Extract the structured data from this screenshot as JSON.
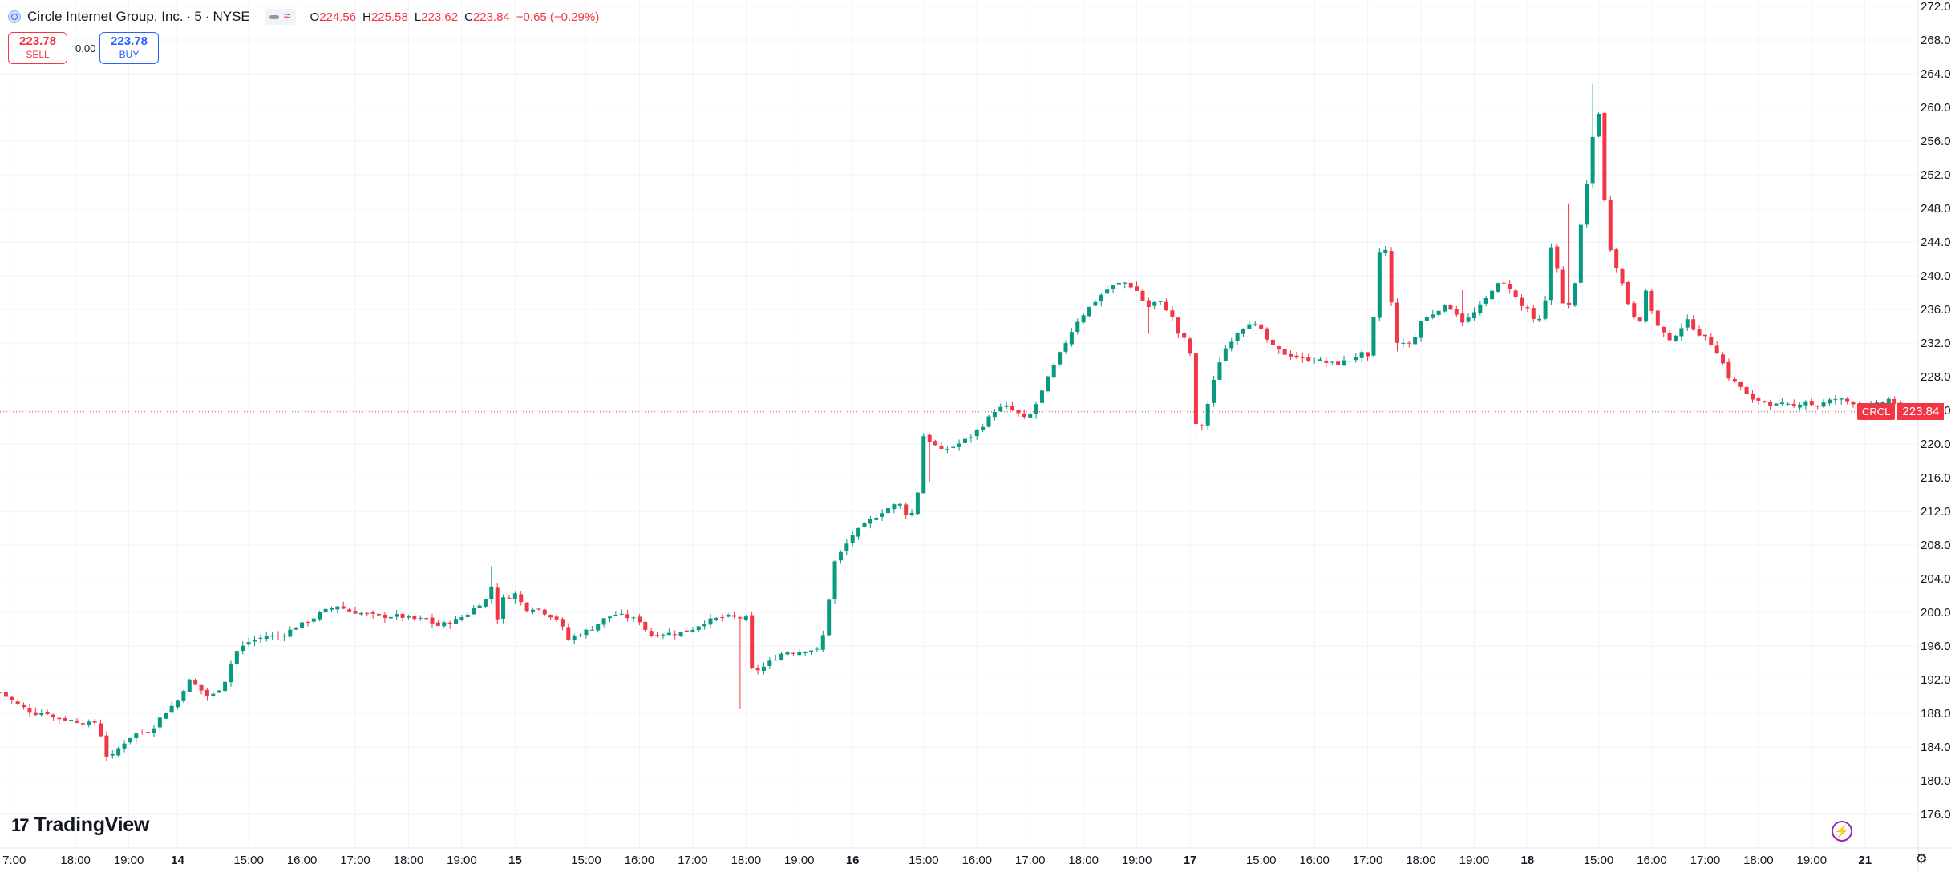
{
  "header": {
    "symbol_title": "Circle Internet Group, Inc.",
    "interval": "5",
    "exchange": "NYSE",
    "ohlc": {
      "o": "224.56",
      "h": "225.58",
      "l": "223.62",
      "c": "223.84",
      "change": "−0.65 (−0.29%)"
    }
  },
  "trade": {
    "sell_price": "223.78",
    "sell_label": "SELL",
    "spread": "0.00",
    "buy_price": "223.78",
    "buy_label": "BUY"
  },
  "branding": {
    "logo_text": "TradingView",
    "logo_mark": "17"
  },
  "last_price": {
    "symbol": "CRCL",
    "value": "223.84"
  },
  "colors": {
    "up": "#089981",
    "down": "#f23645",
    "grid": "#f0f3fa",
    "accent": "#2962ff"
  },
  "icons": [
    "symbol-logo-icon",
    "collapse-icon",
    "indicator-wave-icon",
    "lightning-icon",
    "settings-gear-icon"
  ],
  "chart_data": {
    "type": "candlestick",
    "title": "Circle Internet Group, Inc. · 5 · NYSE",
    "ylim": [
      174,
      272
    ],
    "y_ticks": [
      "176.00",
      "180.00",
      "184.00",
      "188.00",
      "192.00",
      "196.00",
      "200.00",
      "204.00",
      "208.00",
      "212.00",
      "216.00",
      "220.00",
      "224.00",
      "228.00",
      "232.00",
      "236.00",
      "240.00",
      "244.00",
      "248.00",
      "252.00",
      "256.00",
      "260.00",
      "264.00",
      "268.00",
      "272.00"
    ],
    "x_ticks": [
      "7:00",
      "18:00",
      "19:00",
      "14",
      "15:00",
      "16:00",
      "17:00",
      "18:00",
      "19:00",
      "15",
      "15:00",
      "16:00",
      "17:00",
      "18:00",
      "19:00",
      "16",
      "15:00",
      "16:00",
      "17:00",
      "18:00",
      "19:00",
      "17",
      "15:00",
      "16:00",
      "17:00",
      "18:00",
      "19:00",
      "18",
      "15:00",
      "16:00",
      "17:00",
      "18:00",
      "19:00",
      "21"
    ],
    "x_tick_pos": [
      0.8,
      4.25,
      7.25,
      10,
      14,
      17,
      20,
      23,
      26,
      29,
      33,
      36,
      39,
      42,
      45,
      48,
      52,
      55,
      58,
      61,
      64,
      67,
      71,
      74,
      77,
      80,
      83,
      86,
      90,
      93,
      96,
      99,
      102,
      105
    ],
    "n_slots": 107,
    "path": [
      [
        0,
        190.5
      ],
      [
        1,
        189
      ],
      [
        2,
        188
      ],
      [
        2.6,
        188.2
      ],
      [
        3,
        187.5
      ],
      [
        4,
        187.2
      ],
      [
        5,
        186.8
      ],
      [
        5.5,
        187
      ],
      [
        5.9,
        183.2
      ],
      [
        6.2,
        182.6
      ],
      [
        6.8,
        184.2
      ],
      [
        7.5,
        185.5
      ],
      [
        8.5,
        186
      ],
      [
        9.2,
        188
      ],
      [
        10,
        189.5
      ],
      [
        10.6,
        192
      ],
      [
        11.2,
        191
      ],
      [
        11.8,
        189.8
      ],
      [
        12.6,
        191.5
      ],
      [
        13.2,
        195.2
      ],
      [
        14,
        196.5
      ],
      [
        15,
        197.2
      ],
      [
        15.8,
        197.2
      ],
      [
        16.6,
        198.2
      ],
      [
        17.4,
        199
      ],
      [
        18.1,
        200
      ],
      [
        19,
        200.8
      ],
      [
        19.6,
        200.2
      ],
      [
        20.6,
        199.8
      ],
      [
        21.4,
        199.5
      ],
      [
        22.4,
        199.6
      ],
      [
        23.2,
        199.2
      ],
      [
        24,
        199.2
      ],
      [
        24.6,
        198.4
      ],
      [
        25.6,
        199
      ],
      [
        26.3,
        199.8
      ],
      [
        26.8,
        200.8
      ],
      [
        27.4,
        201.6
      ],
      [
        27.6,
        204.4
      ],
      [
        27.9,
        198.6
      ],
      [
        28.3,
        201.6
      ],
      [
        29,
        202.2
      ],
      [
        29.6,
        200.4
      ],
      [
        30.2,
        200.6
      ],
      [
        30.8,
        199.8
      ],
      [
        31.4,
        199.2
      ],
      [
        32,
        196.8
      ],
      [
        32.6,
        197.4
      ],
      [
        33.4,
        198.2
      ],
      [
        34,
        199.2
      ],
      [
        34.6,
        199.8
      ],
      [
        35.4,
        199.4
      ],
      [
        36,
        199
      ],
      [
        36.6,
        197.2
      ],
      [
        37.2,
        197.5
      ],
      [
        38,
        197.5
      ],
      [
        38.8,
        197.8
      ],
      [
        39.6,
        198.8
      ],
      [
        40.2,
        199.2
      ],
      [
        41,
        199.5
      ],
      [
        41.8,
        199.3
      ],
      [
        42.1,
        199.3
      ],
      [
        42.3,
        193.2
      ],
      [
        42.8,
        193.2
      ],
      [
        43.4,
        194.2
      ],
      [
        44.2,
        195.4
      ],
      [
        44.8,
        195.2
      ],
      [
        45.4,
        195.6
      ],
      [
        46,
        195.5
      ],
      [
        46.3,
        196.8
      ],
      [
        47,
        206
      ],
      [
        48,
        209.2
      ],
      [
        48.8,
        210.6
      ],
      [
        49.8,
        212.2
      ],
      [
        50.6,
        213
      ],
      [
        51.2,
        211.2
      ],
      [
        51.6,
        213
      ],
      [
        52,
        221
      ],
      [
        53,
        219.2
      ],
      [
        53.8,
        219.8
      ],
      [
        54.6,
        220.8
      ],
      [
        55.4,
        222.4
      ],
      [
        56,
        224
      ],
      [
        56.6,
        224.5
      ],
      [
        57.2,
        223.8
      ],
      [
        57.8,
        222.8
      ],
      [
        58.4,
        225
      ],
      [
        59,
        227.8
      ],
      [
        59.8,
        231.3
      ],
      [
        60.6,
        234.5
      ],
      [
        61.4,
        236.4
      ],
      [
        62.2,
        238.2
      ],
      [
        62.8,
        239
      ],
      [
        63.4,
        239.2
      ],
      [
        64,
        238.2
      ],
      [
        64.6,
        236.2
      ],
      [
        65.2,
        237.1
      ],
      [
        65.7,
        236
      ],
      [
        66.2,
        234.4
      ],
      [
        66.5,
        231.6
      ],
      [
        66.9,
        233.6
      ],
      [
        67.3,
        222.2
      ],
      [
        67.7,
        222.2
      ],
      [
        68.2,
        226.5
      ],
      [
        68.8,
        230.8
      ],
      [
        69.6,
        233.2
      ],
      [
        70.4,
        234.6
      ],
      [
        71,
        233.4
      ],
      [
        71.6,
        231.6
      ],
      [
        72.2,
        230.8
      ],
      [
        72.8,
        230.5
      ],
      [
        73.4,
        230
      ],
      [
        74,
        230.1
      ],
      [
        74.6,
        229.7
      ],
      [
        75.2,
        229.5
      ],
      [
        76,
        230
      ],
      [
        76.6,
        230.8
      ],
      [
        77,
        230.2
      ],
      [
        77.4,
        235.8
      ],
      [
        77.7,
        243.6
      ],
      [
        78.1,
        242.8
      ],
      [
        78.5,
        232.4
      ],
      [
        79.1,
        231.7
      ],
      [
        79.6,
        232.4
      ],
      [
        80,
        234.6
      ],
      [
        80.6,
        235.4
      ],
      [
        81.2,
        236.4
      ],
      [
        81.8,
        236.1
      ],
      [
        82.4,
        234.4
      ],
      [
        83,
        235.6
      ],
      [
        83.6,
        237
      ],
      [
        84.1,
        238.8
      ],
      [
        84.6,
        239.1
      ],
      [
        85,
        238.6
      ],
      [
        85.6,
        236.4
      ],
      [
        86.1,
        236.1
      ],
      [
        86.5,
        233.6
      ],
      [
        86.9,
        236.3
      ],
      [
        87.2,
        238.2
      ],
      [
        87.4,
        246
      ],
      [
        87.7,
        240.4
      ],
      [
        88,
        236.6
      ],
      [
        88.3,
        236.1
      ],
      [
        88.7,
        239.6
      ],
      [
        89,
        245.8
      ],
      [
        89.4,
        251.8
      ],
      [
        89.8,
        258.8
      ],
      [
        90,
        259.4
      ],
      [
        90.4,
        246.8
      ],
      [
        90.7,
        242.8
      ],
      [
        91.2,
        240
      ],
      [
        91.7,
        236.5
      ],
      [
        92,
        235.3
      ],
      [
        92.4,
        234.7
      ],
      [
        92.7,
        238.4
      ],
      [
        93.2,
        234.3
      ],
      [
        93.6,
        233.4
      ],
      [
        94,
        232.1
      ],
      [
        94.5,
        233.6
      ],
      [
        95,
        234.6
      ],
      [
        95.6,
        233.2
      ],
      [
        96.2,
        232.3
      ],
      [
        96.8,
        230.6
      ],
      [
        97.3,
        228
      ],
      [
        98,
        226.8
      ],
      [
        98.6,
        225.1
      ],
      [
        99.2,
        225.3
      ],
      [
        99.8,
        224.6
      ],
      [
        100.4,
        224.7
      ],
      [
        101,
        224.4
      ],
      [
        101.6,
        225.3
      ],
      [
        102.2,
        224.4
      ],
      [
        102.8,
        225
      ],
      [
        103.4,
        225.4
      ],
      [
        104,
        225.1
      ],
      [
        104.6,
        224.8
      ],
      [
        105.2,
        224.4
      ],
      [
        105.8,
        224.8
      ],
      [
        106.4,
        225.4
      ],
      [
        106.8,
        224.6
      ],
      [
        107.3,
        223.84
      ]
    ],
    "spikes": [
      {
        "at": 41.8,
        "low": 188.5
      },
      {
        "at": 46.3,
        "low": 201.5
      },
      {
        "at": 66.5,
        "high": 234.5
      },
      {
        "at": 67.3,
        "low": 220.2
      },
      {
        "at": 88.3,
        "high": 248.6
      },
      {
        "at": 89.8,
        "high": 262.8
      },
      {
        "at": 90.7,
        "high": 248.6
      },
      {
        "at": 82.3,
        "high": 238.3
      },
      {
        "at": 64.6,
        "low": 233.1
      },
      {
        "at": 78.5,
        "low": 231.0
      },
      {
        "at": 52.4,
        "low": 215.5
      },
      {
        "at": 27.6,
        "high": 205.5
      }
    ],
    "series": [
      {
        "name": "CRCL",
        "last": 223.84
      }
    ]
  }
}
